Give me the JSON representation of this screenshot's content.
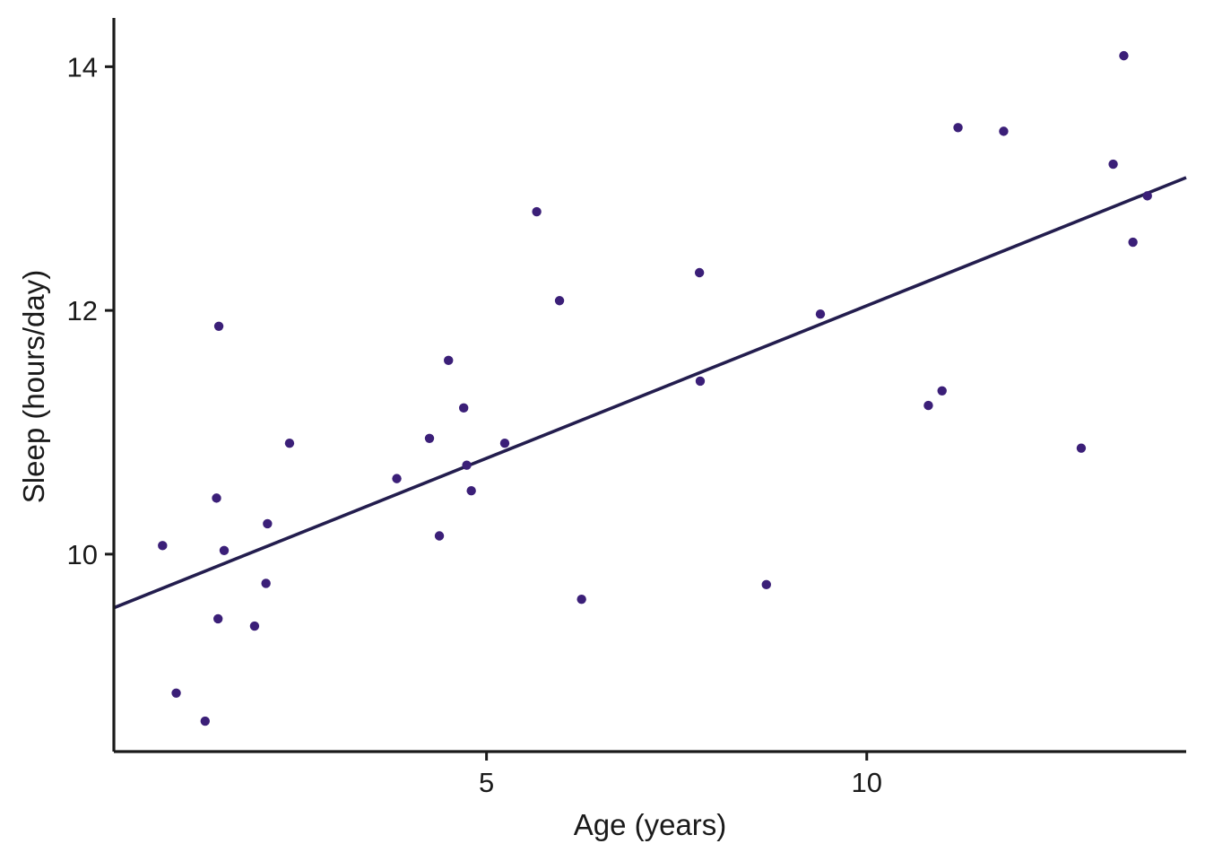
{
  "chart_data": {
    "type": "scatter",
    "title": "",
    "xlabel": "Age (years)",
    "ylabel": "Sleep (hours/day)",
    "xlim": [
      0.1,
      14.2
    ],
    "ylim": [
      8.38,
      14.4
    ],
    "x_ticks": [
      5,
      10
    ],
    "y_ticks": [
      10,
      12,
      14
    ],
    "grid": false,
    "legend": "none",
    "point_color": "#3b1f78",
    "line_color": "#231d4e",
    "series": [
      {
        "points": [
          {
            "x": 0.74,
            "y": 10.07
          },
          {
            "x": 0.92,
            "y": 8.86
          },
          {
            "x": 1.3,
            "y": 8.63
          },
          {
            "x": 1.45,
            "y": 10.46
          },
          {
            "x": 1.47,
            "y": 9.47
          },
          {
            "x": 1.48,
            "y": 11.87
          },
          {
            "x": 1.55,
            "y": 10.03
          },
          {
            "x": 1.95,
            "y": 9.41
          },
          {
            "x": 2.1,
            "y": 9.76
          },
          {
            "x": 2.12,
            "y": 10.25
          },
          {
            "x": 2.41,
            "y": 10.91
          },
          {
            "x": 3.82,
            "y": 10.62
          },
          {
            "x": 4.25,
            "y": 10.95
          },
          {
            "x": 4.38,
            "y": 10.15
          },
          {
            "x": 4.5,
            "y": 11.59
          },
          {
            "x": 4.7,
            "y": 11.2
          },
          {
            "x": 4.74,
            "y": 10.73
          },
          {
            "x": 4.8,
            "y": 10.52
          },
          {
            "x": 5.24,
            "y": 10.91
          },
          {
            "x": 5.66,
            "y": 12.81
          },
          {
            "x": 5.96,
            "y": 12.08
          },
          {
            "x": 6.25,
            "y": 9.63
          },
          {
            "x": 7.8,
            "y": 12.31
          },
          {
            "x": 7.81,
            "y": 11.42
          },
          {
            "x": 8.68,
            "y": 9.75
          },
          {
            "x": 9.39,
            "y": 11.97
          },
          {
            "x": 10.81,
            "y": 11.22
          },
          {
            "x": 10.99,
            "y": 11.34
          },
          {
            "x": 11.2,
            "y": 13.5
          },
          {
            "x": 11.8,
            "y": 13.47
          },
          {
            "x": 12.82,
            "y": 10.87
          },
          {
            "x": 13.24,
            "y": 13.2
          },
          {
            "x": 13.38,
            "y": 14.09
          },
          {
            "x": 13.5,
            "y": 12.56
          },
          {
            "x": 13.69,
            "y": 12.94
          }
        ]
      }
    ],
    "trend_line": {
      "type": "linear",
      "start": {
        "x": 0.1,
        "y": 9.56
      },
      "end": {
        "x": 14.2,
        "y": 13.09
      }
    }
  }
}
